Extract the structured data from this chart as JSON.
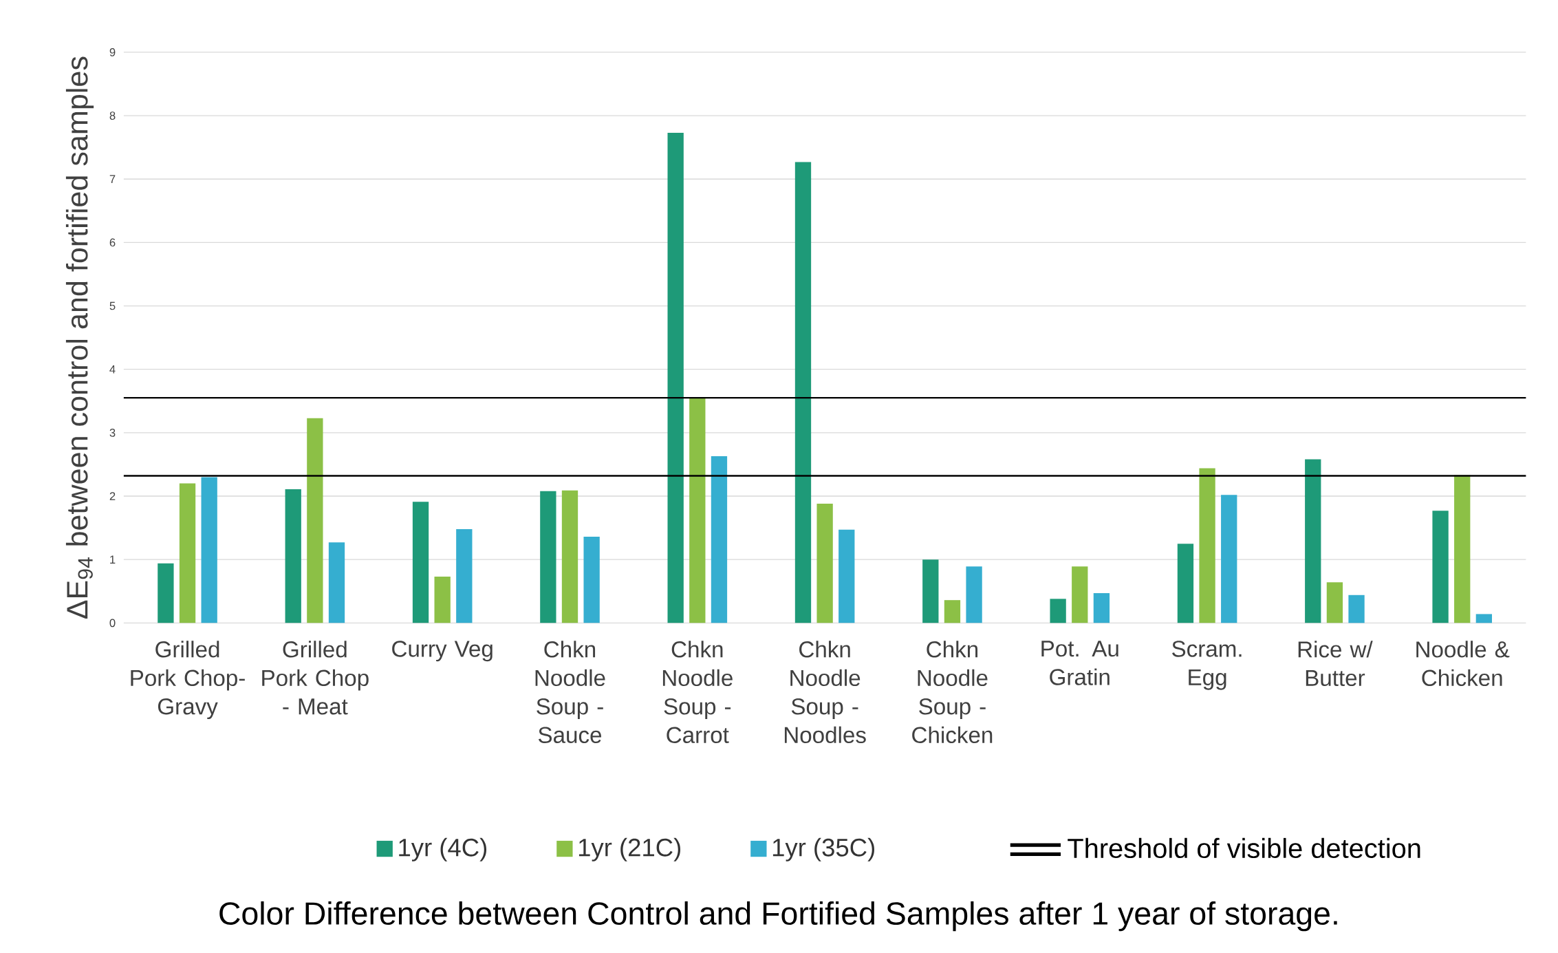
{
  "chart_data": {
    "type": "bar",
    "title": "Color Difference between Control and Fortified Samples after 1 year of storage.",
    "ylabel": "ΔE$_{94}$ between control and fortified samples",
    "categories": [
      "Grilled Pork Chop-Gravy",
      "Grilled Pork Chop - Meat",
      "Curry Veg",
      "Chkn Noodle Soup - Sauce",
      "Chkn Noodle Soup - Carrot",
      "Chkn Noodle Soup - Noodles",
      "Chkn Noodle Soup - Chicken",
      "Pot. Au Gratin",
      "Scram. Egg",
      "Rice w/ Butter",
      "Noodle & Chicken"
    ],
    "series": [
      {
        "name": "1yr (4C)",
        "color": "#1e9a78",
        "values": [
          0.94,
          2.11,
          1.91,
          2.08,
          7.73,
          7.27,
          1.0,
          0.38,
          1.25,
          2.58,
          1.77
        ]
      },
      {
        "name": "1yr (21C)",
        "color": "#8cc046",
        "values": [
          2.2,
          3.23,
          0.73,
          2.09,
          3.55,
          1.88,
          0.36,
          0.89,
          2.44,
          0.64,
          2.33
        ]
      },
      {
        "name": "1yr (35C)",
        "color": "#35aed0",
        "values": [
          2.3,
          1.27,
          1.48,
          1.36,
          2.63,
          1.47,
          0.89,
          0.47,
          2.02,
          0.44,
          0.14
        ]
      }
    ],
    "ylim": [
      0,
      9
    ],
    "yticks": [
      0,
      1,
      2,
      3,
      4,
      5,
      6,
      7,
      8,
      9
    ],
    "grid": "y",
    "legend": "bottom",
    "ref_lines": [
      {
        "axis": "y",
        "value": 3.55,
        "label": "Threshold of visible detection",
        "color": "#000000"
      },
      {
        "axis": "y",
        "value": 2.32,
        "color": "#000000"
      }
    ]
  }
}
